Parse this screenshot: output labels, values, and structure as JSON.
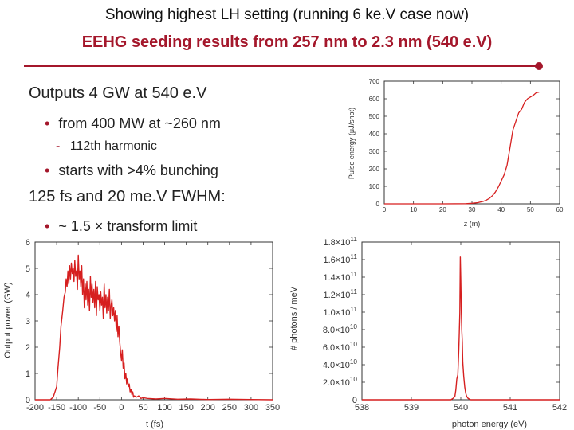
{
  "slide": {
    "top_line": "Showing highest LH setting (running 6 ke.V case now)",
    "title": "EEHG seeding results from 257 nm to 2.3 nm (540 e.V)",
    "colors": {
      "title": "#a4172b",
      "trace": "#d61f1f"
    }
  },
  "bullets": [
    {
      "level": 1,
      "text": "Outputs 4 GW at 540 e.V"
    },
    {
      "level": 2,
      "marker": "•",
      "text": "from 400 MW at ~260 nm"
    },
    {
      "level": 3,
      "marker": "-",
      "text": "112th harmonic"
    },
    {
      "level": 2,
      "marker": "•",
      "text": "starts with >4% bunching"
    },
    {
      "level": 1,
      "text": "125 fs and 20 me.V FWHM:"
    },
    {
      "level": 2,
      "marker": "•",
      "text": "~ 1.5 × transform limit"
    }
  ],
  "chart_data": [
    {
      "type": "line",
      "xlabel": "z (m)",
      "ylabel": "Pulse energy (μJ/shot)",
      "xlim": [
        0,
        60
      ],
      "ylim": [
        0,
        700
      ],
      "xticks": [
        "0",
        "10",
        "20",
        "30",
        "40",
        "50",
        "60"
      ],
      "yticks": [
        "0",
        "100",
        "200",
        "300",
        "400",
        "500",
        "600",
        "700"
      ],
      "x": [
        0,
        20,
        28,
        30,
        32,
        34,
        35,
        36,
        37,
        38,
        39,
        40,
        41,
        42,
        43,
        44,
        45,
        46,
        47,
        48,
        49,
        50,
        51,
        52,
        53
      ],
      "y": [
        0,
        0,
        1,
        3,
        7,
        15,
        22,
        32,
        47,
        67,
        95,
        130,
        165,
        220,
        320,
        420,
        470,
        520,
        540,
        580,
        600,
        610,
        620,
        635,
        638
      ]
    },
    {
      "type": "line",
      "xlabel": "t (fs)",
      "ylabel": "Output power (GW)",
      "xlim": [
        -200,
        350
      ],
      "ylim": [
        0,
        6
      ],
      "xticks": [
        "-200",
        "-150",
        "-100",
        "-50",
        "0",
        "50",
        "100",
        "150",
        "200",
        "250",
        "300",
        "350"
      ],
      "yticks": [
        "0",
        "1",
        "2",
        "3",
        "4",
        "5",
        "6"
      ],
      "x": [
        -200,
        -165,
        -158,
        -150,
        -147,
        -143,
        -140,
        -136,
        -133,
        -130,
        -128,
        -126,
        -124,
        -122,
        -120,
        -118,
        -116,
        -114,
        -112,
        -110,
        -108,
        -106,
        -104,
        -102,
        -100,
        -98,
        -96,
        -94,
        -92,
        -90,
        -88,
        -86,
        -84,
        -82,
        -80,
        -78,
        -76,
        -74,
        -72,
        -70,
        -68,
        -66,
        -64,
        -62,
        -60,
        -58,
        -56,
        -54,
        -52,
        -50,
        -48,
        -46,
        -44,
        -42,
        -40,
        -38,
        -36,
        -34,
        -32,
        -30,
        -28,
        -26,
        -24,
        -22,
        -20,
        -18,
        -16,
        -14,
        -12,
        -10,
        -8,
        -6,
        -4,
        -2,
        0,
        2,
        4,
        6,
        8,
        10,
        12,
        14,
        16,
        18,
        20,
        22,
        24,
        26,
        28,
        30,
        35,
        40,
        45,
        50,
        60,
        80,
        100,
        130,
        160,
        200,
        250,
        300,
        350
      ],
      "y": [
        0,
        0,
        0.1,
        0.5,
        1.2,
        2.0,
        2.8,
        3.4,
        3.9,
        4.1,
        4.6,
        4.3,
        4.9,
        4.4,
        5.1,
        4.6,
        5.2,
        4.8,
        5.0,
        4.5,
        5.3,
        4.7,
        4.9,
        4.2,
        5.5,
        4.6,
        4.9,
        4.3,
        5.1,
        4.0,
        4.6,
        3.5,
        4.4,
        3.8,
        4.5,
        3.6,
        4.2,
        3.4,
        4.7,
        3.9,
        4.4,
        3.7,
        4.2,
        3.5,
        4.5,
        3.2,
        4.3,
        3.8,
        4.0,
        3.4,
        4.1,
        3.6,
        3.9,
        3.1,
        4.4,
        3.5,
        4.0,
        3.3,
        3.9,
        3.4,
        4.2,
        3.1,
        3.6,
        3.8,
        3.2,
        3.5,
        3.0,
        3.4,
        2.6,
        3.2,
        2.4,
        2.8,
        2.2,
        1.8,
        1.5,
        1.9,
        1.2,
        1.4,
        0.8,
        1.0,
        0.6,
        0.8,
        0.5,
        0.6,
        0.3,
        0.4,
        0.2,
        0.3,
        0.1,
        0.15,
        0.1,
        0.15,
        0.05,
        0.08,
        0.05,
        0.03,
        0.05,
        0.02,
        0.03,
        0.01,
        0.02,
        0.01,
        0
      ]
    },
    {
      "type": "line",
      "xlabel": "photon energy (eV)",
      "ylabel": "# photons / meV",
      "xlim": [
        538,
        542
      ],
      "ylim": [
        0,
        190000000000.0
      ],
      "xticks": [
        "538",
        "539",
        "540",
        "541",
        "542"
      ],
      "yticks": [
        "0",
        "2.0×10^10",
        "4.0×10^10",
        "6.0×10^10",
        "8.0×10^10",
        "1.0×10^11",
        "1.2×10^11",
        "1.4×10^11",
        "1.6×10^11",
        "1.8×10^11"
      ],
      "x": [
        538,
        539.8,
        539.85,
        539.88,
        539.9,
        539.92,
        539.94,
        539.96,
        539.97,
        539.98,
        539.99,
        540.0,
        540.01,
        540.02,
        540.03,
        540.04,
        540.06,
        540.08,
        540.1,
        540.12,
        540.15,
        540.2,
        542
      ],
      "y": [
        0,
        0,
        2000000000.0,
        4000000000.0,
        12000000000.0,
        25000000000.0,
        30000000000.0,
        60000000000.0,
        80000000000.0,
        105000000000.0,
        172000000000.0,
        145000000000.0,
        110000000000.0,
        85000000000.0,
        70000000000.0,
        45000000000.0,
        28000000000.0,
        15000000000.0,
        8000000000.0,
        4000000000.0,
        1500000000.0,
        0,
        0
      ]
    }
  ]
}
